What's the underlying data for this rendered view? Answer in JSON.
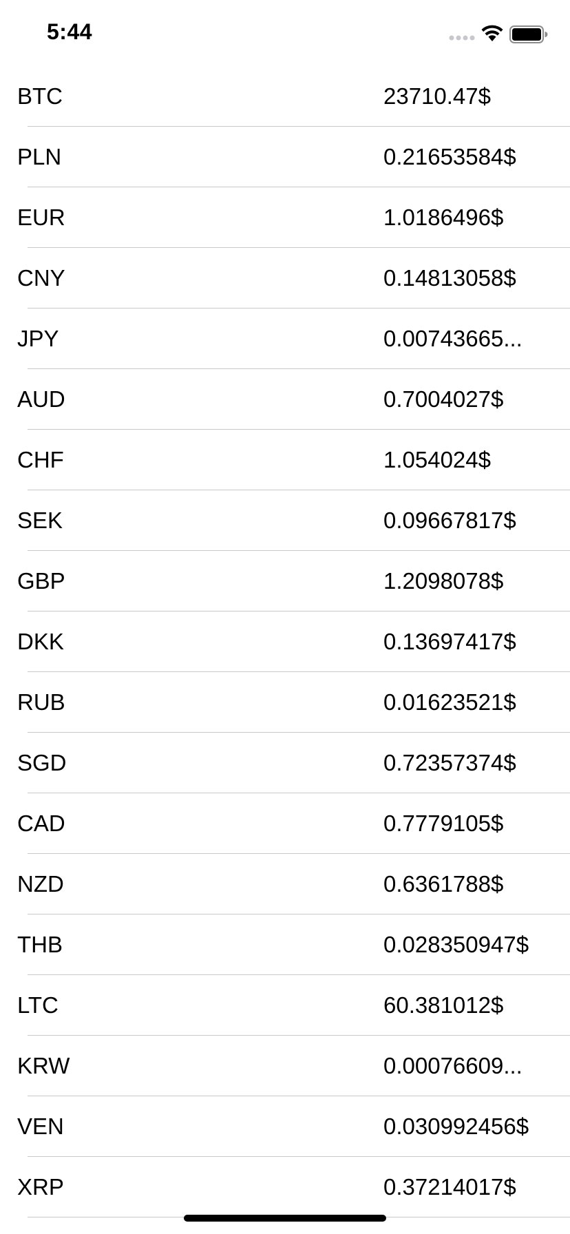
{
  "status_bar": {
    "time": "5:44",
    "icons": [
      "signal-dots-icon",
      "wifi-icon",
      "battery-icon"
    ]
  },
  "rates": [
    {
      "code": "BTC",
      "value": "23710.47$"
    },
    {
      "code": "PLN",
      "value": "0.21653584$"
    },
    {
      "code": "EUR",
      "value": "1.0186496$"
    },
    {
      "code": "CNY",
      "value": "0.14813058$"
    },
    {
      "code": "JPY",
      "value": "0.00743665..."
    },
    {
      "code": "AUD",
      "value": "0.7004027$"
    },
    {
      "code": "CHF",
      "value": "1.054024$"
    },
    {
      "code": "SEK",
      "value": "0.09667817$"
    },
    {
      "code": "GBP",
      "value": "1.2098078$"
    },
    {
      "code": "DKK",
      "value": "0.13697417$"
    },
    {
      "code": "RUB",
      "value": "0.01623521$"
    },
    {
      "code": "SGD",
      "value": "0.72357374$"
    },
    {
      "code": "CAD",
      "value": "0.7779105$"
    },
    {
      "code": "NZD",
      "value": "0.6361788$"
    },
    {
      "code": "THB",
      "value": "0.028350947$"
    },
    {
      "code": "LTC",
      "value": "60.381012$"
    },
    {
      "code": "KRW",
      "value": "0.00076609..."
    },
    {
      "code": "VEN",
      "value": "0.030992456$"
    },
    {
      "code": "XRP",
      "value": "0.37214017$"
    }
  ]
}
